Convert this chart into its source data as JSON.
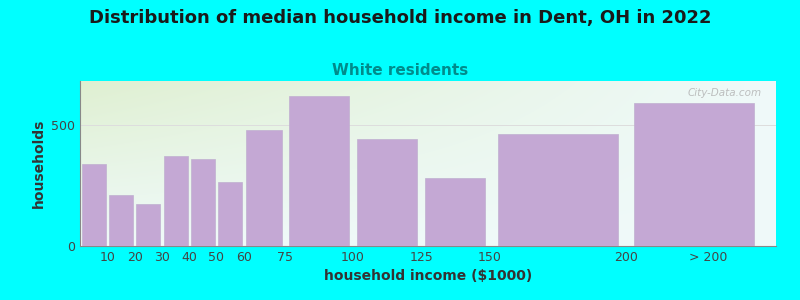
{
  "title": "Distribution of median household income in Dent, OH in 2022",
  "subtitle": "White residents",
  "xlabel": "household income ($1000)",
  "ylabel": "households",
  "background_outer": "#00FFFF",
  "bar_color": "#C4A8D4",
  "bar_edge_color": "#C0B0D0",
  "categories": [
    "10",
    "20",
    "30",
    "40",
    "50",
    "60",
    "75",
    "100",
    "125",
    "150",
    "200",
    "> 200"
  ],
  "values": [
    340,
    210,
    175,
    370,
    360,
    265,
    480,
    620,
    440,
    280,
    460,
    590
  ],
  "yticks": [
    0,
    500
  ],
  "ylim": [
    0,
    680
  ],
  "title_fontsize": 13,
  "subtitle_fontsize": 11,
  "axis_label_fontsize": 10,
  "tick_fontsize": 9,
  "plot_bg_top_left_color": "#DFF0D0",
  "plot_bg_top_right_color": "#F0F0F0",
  "plot_bg_bottom_color": "#FAFAFA",
  "watermark": "City-Data.com"
}
